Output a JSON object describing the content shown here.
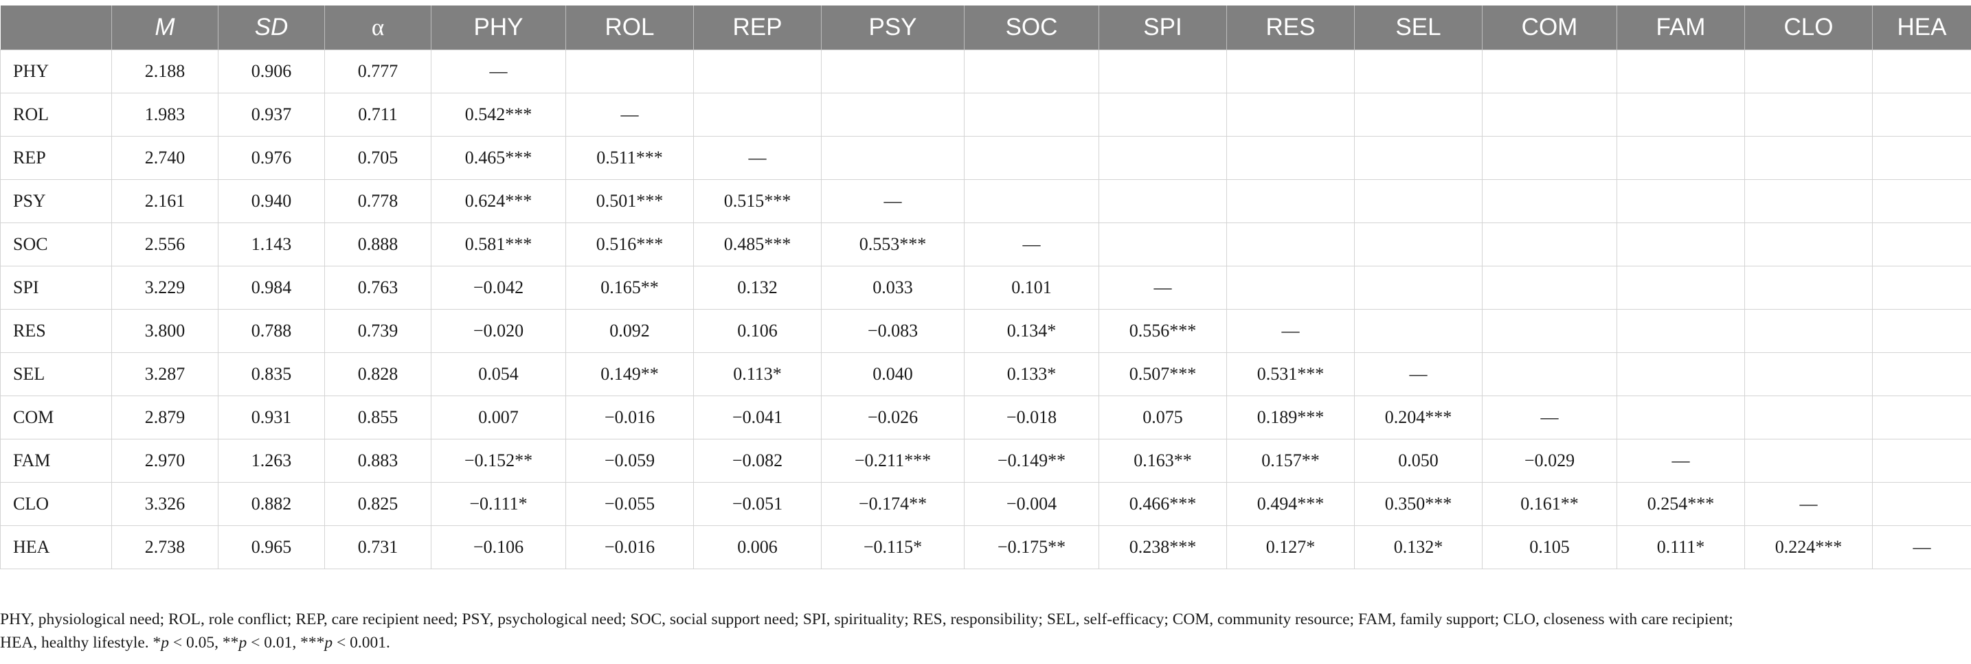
{
  "table": {
    "columns": [
      "",
      "M",
      "SD",
      "α",
      "PHY",
      "ROL",
      "REP",
      "PSY",
      "SOC",
      "SPI",
      "RES",
      "SEL",
      "COM",
      "FAM",
      "CLO",
      "HEA"
    ],
    "rows": [
      {
        "label": "PHY",
        "cells": [
          "2.188",
          "0.906",
          "0.777",
          "—",
          "",
          "",
          "",
          "",
          "",
          "",
          "",
          "",
          "",
          "",
          ""
        ]
      },
      {
        "label": "ROL",
        "cells": [
          "1.983",
          "0.937",
          "0.711",
          "0.542***",
          "—",
          "",
          "",
          "",
          "",
          "",
          "",
          "",
          "",
          "",
          ""
        ]
      },
      {
        "label": "REP",
        "cells": [
          "2.740",
          "0.976",
          "0.705",
          "0.465***",
          "0.511***",
          "—",
          "",
          "",
          "",
          "",
          "",
          "",
          "",
          "",
          ""
        ]
      },
      {
        "label": "PSY",
        "cells": [
          "2.161",
          "0.940",
          "0.778",
          "0.624***",
          "0.501***",
          "0.515***",
          "—",
          "",
          "",
          "",
          "",
          "",
          "",
          "",
          ""
        ]
      },
      {
        "label": "SOC",
        "cells": [
          "2.556",
          "1.143",
          "0.888",
          "0.581***",
          "0.516***",
          "0.485***",
          "0.553***",
          "—",
          "",
          "",
          "",
          "",
          "",
          "",
          ""
        ]
      },
      {
        "label": "SPI",
        "cells": [
          "3.229",
          "0.984",
          "0.763",
          "−0.042",
          "0.165**",
          "0.132",
          "0.033",
          "0.101",
          "—",
          "",
          "",
          "",
          "",
          "",
          ""
        ]
      },
      {
        "label": "RES",
        "cells": [
          "3.800",
          "0.788",
          "0.739",
          "−0.020",
          "0.092",
          "0.106",
          "−0.083",
          "0.134*",
          "0.556***",
          "—",
          "",
          "",
          "",
          "",
          ""
        ]
      },
      {
        "label": "SEL",
        "cells": [
          "3.287",
          "0.835",
          "0.828",
          "0.054",
          "0.149**",
          "0.113*",
          "0.040",
          "0.133*",
          "0.507***",
          "0.531***",
          "—",
          "",
          "",
          "",
          ""
        ]
      },
      {
        "label": "COM",
        "cells": [
          "2.879",
          "0.931",
          "0.855",
          "0.007",
          "−0.016",
          "−0.041",
          "−0.026",
          "−0.018",
          "0.075",
          "0.189***",
          "0.204***",
          "—",
          "",
          "",
          ""
        ]
      },
      {
        "label": "FAM",
        "cells": [
          "2.970",
          "1.263",
          "0.883",
          "−0.152**",
          "−0.059",
          "−0.082",
          "−0.211***",
          "−0.149**",
          "0.163**",
          "0.157**",
          "0.050",
          "−0.029",
          "—",
          "",
          ""
        ]
      },
      {
        "label": "CLO",
        "cells": [
          "3.326",
          "0.882",
          "0.825",
          "−0.111*",
          "−0.055",
          "−0.051",
          "−0.174**",
          "−0.004",
          "0.466***",
          "0.494***",
          "0.350***",
          "0.161**",
          "0.254***",
          "—",
          ""
        ]
      },
      {
        "label": "HEA",
        "cells": [
          "2.738",
          "0.965",
          "0.731",
          "−0.106",
          "−0.016",
          "0.006",
          "−0.115*",
          "−0.175**",
          "0.238***",
          "0.127*",
          "0.132*",
          "0.105",
          "0.111*",
          "0.224***",
          "—"
        ]
      }
    ]
  },
  "footnote": {
    "line1": "PHY, physiological need; ROL, role conflict; REP, care recipient need; PSY, psychological need; SOC, social support need; SPI, spirituality; RES, responsibility; SEL, self-efficacy; COM, community resource; FAM, family support; CLO, closeness with care recipient;",
    "line2_prefix": "HEA, healthy lifestyle. *",
    "p_symbol": "p",
    "sig1": " < 0.05, **",
    "sig2": " < 0.01, ***",
    "sig3": " < 0.001."
  }
}
